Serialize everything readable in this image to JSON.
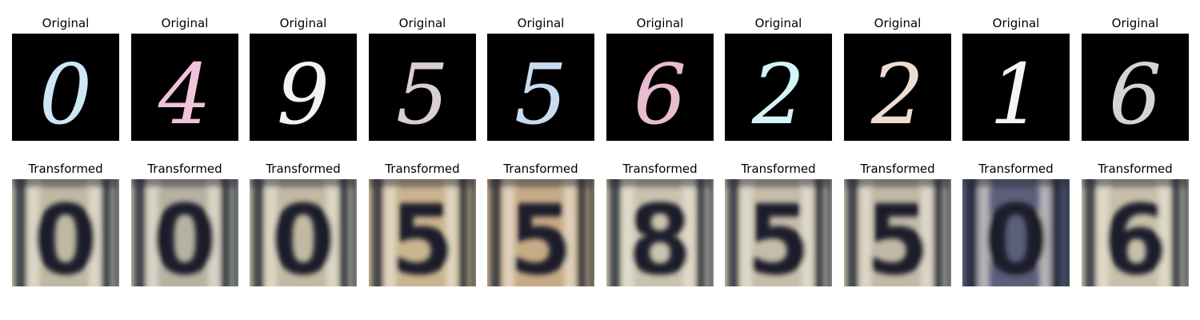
{
  "rows": [
    {
      "title": "Original",
      "kind": "original",
      "panels": [
        {
          "digit": "0",
          "color": "#cfe6f5"
        },
        {
          "digit": "4",
          "color": "#f1c3da"
        },
        {
          "digit": "9",
          "color": "#f2f2f2"
        },
        {
          "digit": "5",
          "color": "#d9cfcf"
        },
        {
          "digit": "5",
          "color": "#c9dcee"
        },
        {
          "digit": "6",
          "color": "#e9bccf"
        },
        {
          "digit": "2",
          "color": "#d4f4f7"
        },
        {
          "digit": "2",
          "color": "#efdcd1"
        },
        {
          "digit": "1",
          "color": "#f4f4f4"
        },
        {
          "digit": "6",
          "color": "#d8d3d3"
        }
      ]
    },
    {
      "title": "Transformed",
      "kind": "transformed",
      "panels": [
        {
          "digit": "0",
          "color": "#bfb9a3"
        },
        {
          "digit": "0",
          "color": "#b6b2a2"
        },
        {
          "digit": "0",
          "color": "#c2b9a2"
        },
        {
          "digit": "5",
          "color": "#c9b48e"
        },
        {
          "digit": "5",
          "color": "#c7ab86"
        },
        {
          "digit": "8",
          "color": "#c9c3ae"
        },
        {
          "digit": "5",
          "color": "#c5bda9"
        },
        {
          "digit": "5",
          "color": "#c1b9a6"
        },
        {
          "digit": "0",
          "color": "#5b5f7a"
        },
        {
          "digit": "6",
          "color": "#c7bfa9"
        }
      ]
    }
  ]
}
